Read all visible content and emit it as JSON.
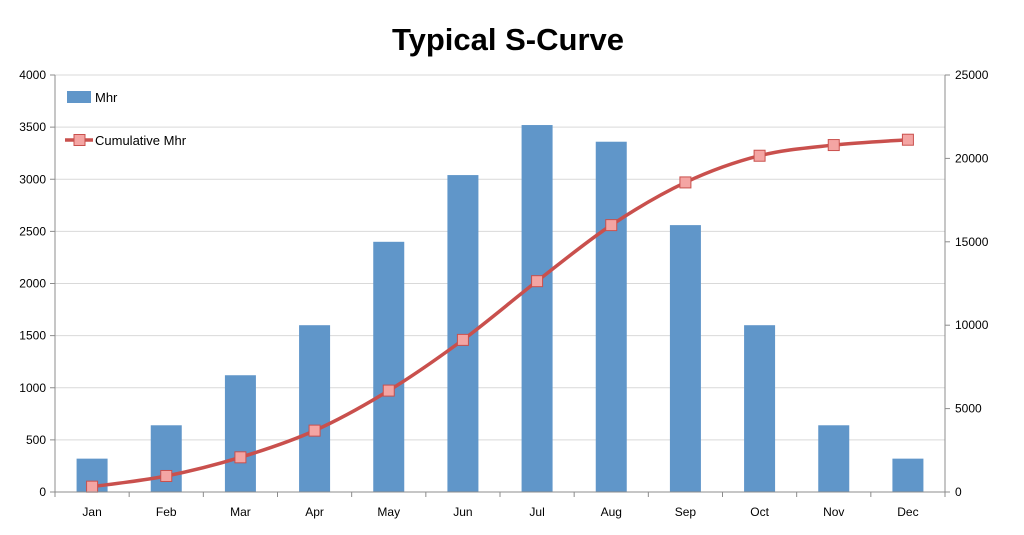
{
  "chart_data": {
    "type": "bar",
    "title": "Typical S-Curve",
    "xlabel": "",
    "ylabel": "",
    "y2label": "",
    "categories": [
      "Jan",
      "Feb",
      "Mar",
      "Apr",
      "May",
      "Jun",
      "Jul",
      "Aug",
      "Sep",
      "Oct",
      "Nov",
      "Dec"
    ],
    "series": [
      {
        "name": "Mhr",
        "type": "bar",
        "axis": "left",
        "color": "#6096c9",
        "values": [
          320,
          640,
          1120,
          1600,
          2400,
          3040,
          3520,
          3360,
          2560,
          1600,
          640,
          320
        ]
      },
      {
        "name": "Cumulative Mhr",
        "type": "line",
        "axis": "right",
        "color": "#c9504d",
        "marker": "square",
        "values": [
          320,
          960,
          2080,
          3680,
          6080,
          9120,
          12640,
          16000,
          18560,
          20160,
          20800,
          21120
        ]
      }
    ],
    "ylim": [
      0,
      4000
    ],
    "yticks": [
      0,
      500,
      1000,
      1500,
      2000,
      2500,
      3000,
      3500,
      4000
    ],
    "y2lim": [
      0,
      25000
    ],
    "y2ticks": [
      0,
      5000,
      10000,
      15000,
      20000,
      25000
    ],
    "grid": true,
    "legend_position": "top-left"
  }
}
